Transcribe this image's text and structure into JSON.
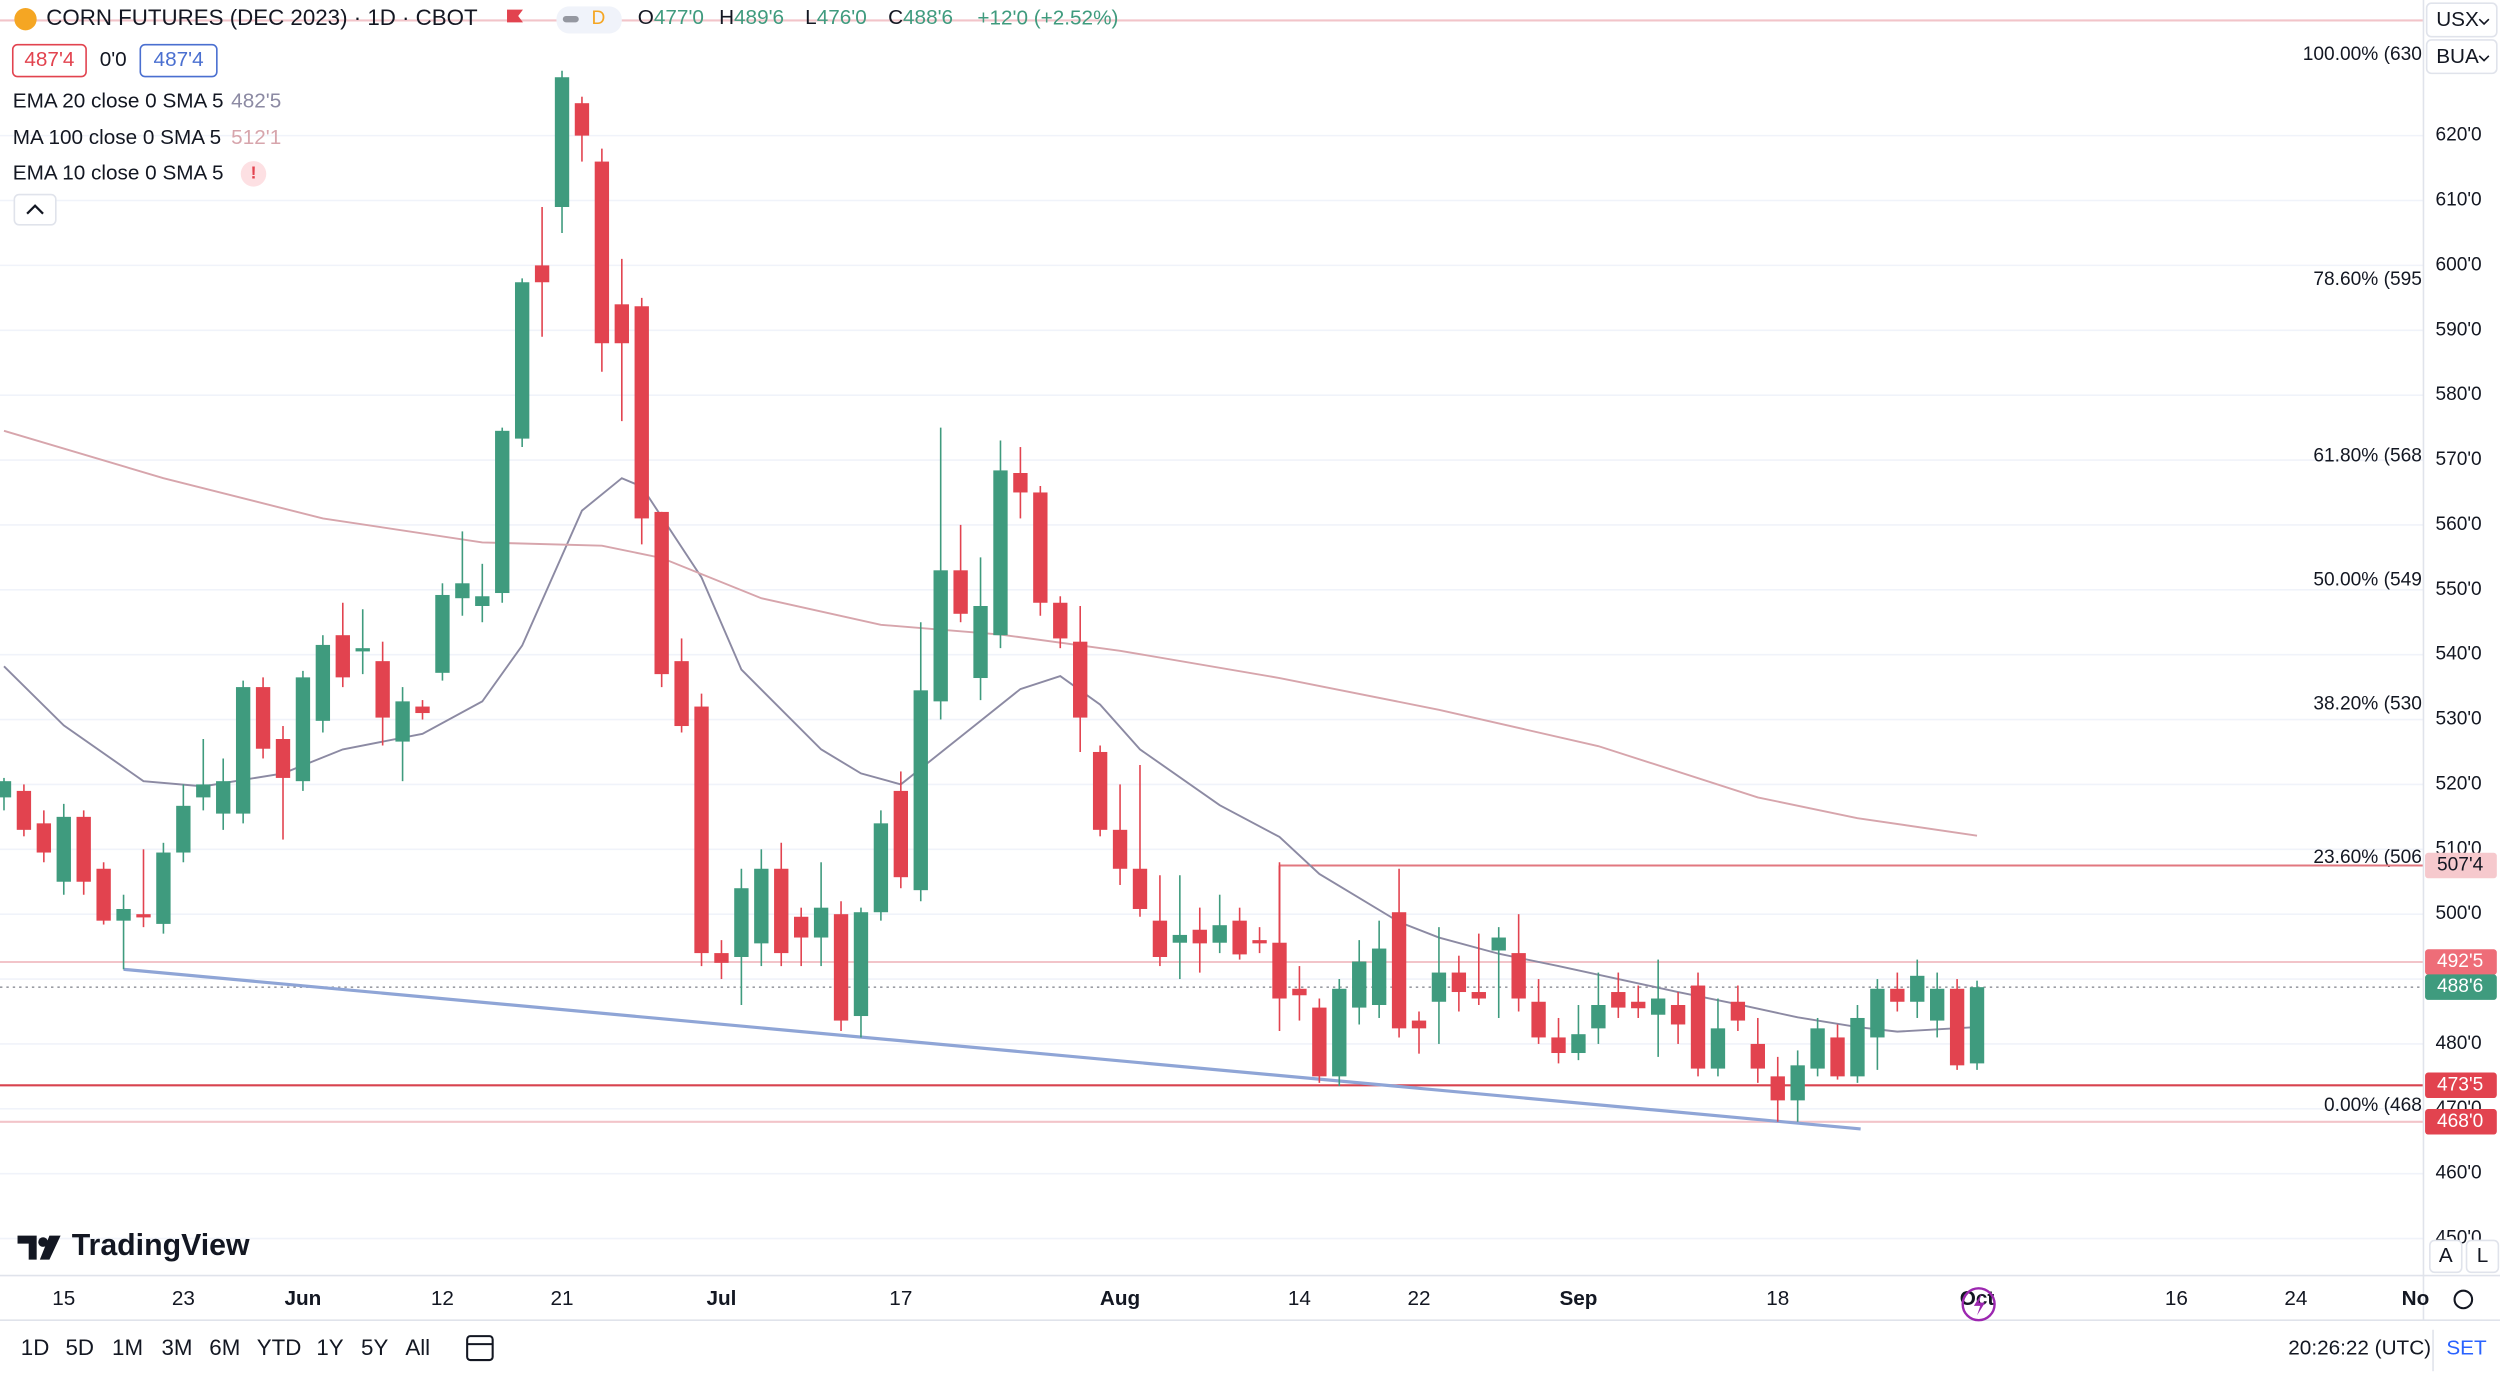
{
  "header": {
    "title": "CORN FUTURES (DEC 2023) · 1D · CBOT",
    "interval_badge": "D",
    "ohlc": [
      {
        "label": "O",
        "value": "477'0"
      },
      {
        "label": "H",
        "value": "489'6"
      },
      {
        "label": "L",
        "value": "476'0"
      },
      {
        "label": "C",
        "value": "488'6"
      }
    ],
    "change": "+12'0 (+2.52%)"
  },
  "quote": {
    "bid": "487'4",
    "spread": "0'0",
    "ask": "487'4"
  },
  "top_right": {
    "currency": "USX",
    "unit": "BUA"
  },
  "logo": "TradingView",
  "toolbar": {
    "ranges": [
      "1D",
      "5D",
      "1M",
      "3M",
      "6M",
      "YTD",
      "1Y",
      "5Y",
      "All"
    ],
    "clock": "20:26:22 (UTC)",
    "settings": "SET",
    "scale_buttons": [
      "A",
      "L"
    ]
  },
  "chart_data": {
    "type": "candlestick",
    "up_color": "#3f9b7e",
    "down_color": "#e2434f",
    "grid": true,
    "categories": [
      null,
      null,
      null,
      "15",
      null,
      null,
      null,
      null,
      null,
      "23",
      null,
      null,
      null,
      null,
      null,
      "Jun",
      null,
      null,
      null,
      null,
      null,
      null,
      "12",
      null,
      null,
      null,
      null,
      null,
      "21",
      null,
      null,
      null,
      null,
      null,
      null,
      null,
      "Jul",
      null,
      null,
      null,
      null,
      null,
      null,
      null,
      null,
      "17",
      null,
      null,
      null,
      null,
      null,
      null,
      null,
      null,
      null,
      null,
      "Aug",
      null,
      null,
      null,
      null,
      null,
      null,
      null,
      null,
      "14",
      null,
      null,
      null,
      null,
      null,
      "22",
      null,
      null,
      null,
      null,
      null,
      null,
      null,
      "Sep",
      null,
      null,
      null,
      null,
      null,
      null,
      null,
      null,
      null,
      "18",
      null,
      null,
      null,
      null,
      null,
      null,
      null,
      null,
      null,
      "Oct",
      null,
      null,
      null,
      null,
      null,
      null,
      null,
      null,
      null,
      "16",
      null,
      null,
      null,
      null,
      null,
      "24",
      null,
      null,
      null,
      null,
      null,
      "No"
    ],
    "open": [
      518,
      519,
      514,
      505,
      515,
      507,
      499,
      500,
      498.5,
      509.5,
      518,
      515.5,
      515.5,
      535,
      527,
      520.5,
      529.8,
      543,
      540.5,
      539,
      526.6,
      532,
      537.2,
      548.7,
      547.5,
      549.5,
      573.3,
      600,
      609,
      625,
      616,
      594,
      593.7,
      562,
      539,
      532,
      494,
      493.4,
      495.5,
      507,
      499.6,
      496.4,
      500,
      484.3,
      500.3,
      519,
      503.7,
      532.8,
      553,
      536.4,
      543,
      568,
      565,
      548,
      542,
      525,
      513,
      507,
      499,
      495.6,
      497.6,
      495.6,
      499,
      496,
      495.6,
      488.5,
      485.6,
      475,
      485.6,
      486,
      500.3,
      483.6,
      486.5,
      491,
      488,
      494.4,
      494,
      486.5,
      481,
      478.6,
      482.4,
      488,
      486.5,
      484.5,
      486,
      489,
      476.2,
      486.5,
      480,
      475,
      471.3,
      476.2,
      481,
      475,
      481,
      488.5,
      486.5,
      483.6,
      488.5,
      477,
      null,
      null,
      null,
      null,
      null,
      null,
      null,
      null,
      null,
      null,
      null,
      null,
      null,
      null,
      null,
      null,
      null,
      null,
      null,
      null,
      null,
      null
    ],
    "high": [
      521,
      520,
      516,
      517,
      516,
      508,
      503,
      510,
      511,
      520,
      527,
      524,
      536,
      536.5,
      529,
      537.5,
      543,
      548,
      547,
      542,
      535,
      533,
      551,
      559,
      554,
      575,
      598,
      609,
      630,
      626,
      618,
      601,
      595,
      562,
      542.5,
      534,
      496,
      507,
      510,
      511,
      501,
      508,
      502,
      501,
      516,
      522,
      545,
      575,
      560,
      555,
      573,
      572,
      566,
      549,
      547.5,
      526,
      520,
      523,
      506,
      506,
      501,
      503,
      501,
      498,
      508,
      492,
      487,
      490,
      496,
      499,
      507,
      485,
      498,
      493.6,
      497,
      498,
      500,
      490,
      484,
      486,
      491,
      491,
      489,
      493,
      488,
      491,
      487,
      489,
      484,
      478,
      479,
      484,
      483,
      486,
      490,
      491,
      493,
      491,
      490,
      489.75,
      null,
      null,
      null,
      null,
      null,
      null,
      null,
      null,
      null,
      null,
      null,
      null,
      null,
      null,
      null,
      null,
      null,
      null,
      null,
      null,
      null,
      null
    ],
    "low": [
      516,
      512,
      508,
      503,
      503,
      498.4,
      491.5,
      498,
      497,
      508,
      516,
      513,
      514,
      524,
      511.5,
      519,
      528,
      535,
      537,
      526,
      520.5,
      530,
      536,
      546,
      545,
      548,
      572,
      589,
      605,
      616,
      583.6,
      576,
      557,
      535,
      528,
      492,
      490,
      486,
      492,
      492,
      492,
      492,
      482,
      481,
      499,
      504,
      502,
      530,
      545,
      533,
      541,
      561,
      546,
      541,
      525,
      512,
      504.5,
      499.6,
      492,
      490,
      491,
      494,
      493,
      494,
      482,
      483.6,
      474,
      473.5,
      483,
      484,
      481,
      478.5,
      480,
      485,
      486,
      484,
      485,
      480,
      477,
      477.5,
      480,
      484,
      484,
      478,
      480,
      475,
      475,
      482,
      474,
      468,
      468,
      475,
      474.5,
      474,
      476,
      485,
      484,
      481,
      476,
      476,
      null,
      null,
      null,
      null,
      null,
      null,
      null,
      null,
      null,
      null,
      null,
      null,
      null,
      null,
      null,
      null,
      null,
      null,
      null,
      null,
      null,
      null
    ],
    "close": [
      520.5,
      513,
      509.5,
      515,
      505,
      499,
      500.8,
      499.5,
      509.5,
      516.7,
      520,
      520.5,
      535,
      525.5,
      521,
      536.5,
      541.5,
      536.5,
      541,
      530.3,
      532.8,
      531,
      549.2,
      551,
      549,
      574.5,
      597.4,
      597.4,
      629,
      620,
      588,
      588,
      561,
      537,
      529,
      494,
      492.5,
      504,
      507,
      494,
      496.4,
      501,
      483.6,
      500.3,
      514,
      505.7,
      534.5,
      553,
      546.3,
      547.5,
      568.4,
      565,
      548,
      542.5,
      530.3,
      513,
      507,
      500.8,
      493.4,
      496.8,
      495.5,
      498.3,
      493.8,
      495.5,
      487,
      487.5,
      475,
      488.5,
      492.7,
      494.7,
      482.4,
      482.4,
      491,
      488,
      487,
      496.4,
      487,
      481,
      478.6,
      481.5,
      486,
      485.6,
      485.5,
      487,
      483,
      476.2,
      482.4,
      483.6,
      476.2,
      471.3,
      476.7,
      482.4,
      475,
      484,
      488.5,
      486.5,
      490.5,
      488.5,
      476.7,
      488.75,
      null,
      null,
      null,
      null,
      null,
      null,
      null,
      null,
      null,
      null,
      null,
      null,
      null,
      null,
      null,
      null,
      null,
      null,
      null,
      null,
      null,
      null
    ],
    "xlim": [
      -0.2,
      121.4
    ],
    "ylim": [
      444.3,
      640.9
    ],
    "yticks": [
      {
        "value": 450,
        "label": "450'0"
      },
      {
        "value": 460,
        "label": "460'0"
      },
      {
        "value": 470,
        "label": "470'0"
      },
      {
        "value": 480,
        "label": "480'0"
      },
      {
        "value": 490,
        "label": "490'0"
      },
      {
        "value": 500,
        "label": "500'0"
      },
      {
        "value": 510,
        "label": "510'0"
      },
      {
        "value": 520,
        "label": "520'0"
      },
      {
        "value": 530,
        "label": "530'0"
      },
      {
        "value": 540,
        "label": "540'0"
      },
      {
        "value": 550,
        "label": "550'0"
      },
      {
        "value": 560,
        "label": "560'0"
      },
      {
        "value": 570,
        "label": "570'0"
      },
      {
        "value": 580,
        "label": "580'0"
      },
      {
        "value": 590,
        "label": "590'0"
      },
      {
        "value": 600,
        "label": "600'0"
      },
      {
        "value": 610,
        "label": "610'0"
      },
      {
        "value": 620,
        "label": "620'0"
      }
    ],
    "series": [
      {
        "name": "EMA 20 close 0 SMA 5",
        "value_label": "482'5",
        "color": "#8c8aa3",
        "x": [
          0,
          3,
          7,
          10,
          14,
          17,
          21,
          24,
          26,
          29,
          31,
          32,
          35,
          37,
          41,
          43,
          45,
          47,
          49,
          51,
          53,
          55,
          57,
          61,
          64,
          66,
          70,
          72,
          75,
          78,
          81,
          84,
          87,
          90,
          93,
          95,
          99
        ],
        "values": [
          538.2,
          529.1,
          520.5,
          519.7,
          521.7,
          525.4,
          527.8,
          532.8,
          541.4,
          562.2,
          567.2,
          565.9,
          551.9,
          537.7,
          525.4,
          521.7,
          520,
          524.9,
          529.8,
          534.7,
          536.7,
          532.3,
          525.4,
          516.8,
          511.9,
          506.2,
          498.8,
          496.4,
          493.9,
          492,
          490,
          488,
          486.1,
          484.1,
          482.6,
          481.9,
          482.6
        ]
      },
      {
        "name": "MA 100 close 0 SMA 5",
        "value_label": "512'1",
        "color": "#d7a5ac",
        "x": [
          0,
          8,
          16,
          24,
          30,
          33,
          38,
          44,
          50,
          56,
          64,
          72,
          80,
          88,
          93,
          99
        ],
        "values": [
          574.5,
          567.2,
          561,
          557.3,
          556.8,
          554.9,
          548.7,
          544.6,
          543.1,
          540.6,
          536.4,
          531.5,
          525.9,
          518,
          514.8,
          512.1
        ]
      }
    ],
    "inactive_indicator": {
      "name": "EMA 10 close 0 SMA 5",
      "status": "!"
    },
    "trendline": {
      "color": "#8fa5d6",
      "x": [
        6,
        93.16
      ],
      "values": [
        491.5,
        466.9
      ]
    },
    "hlines": [
      {
        "value": 637.75,
        "color": "#f2c4c9"
      },
      {
        "value": 492.625,
        "color": "#f2c4c9",
        "label": "492'5",
        "label_bg": "#ee6d78",
        "label_fg": "#ffffff"
      },
      {
        "value": 488.75,
        "color": "#9a9ca3",
        "style": "dotted",
        "label": "488'6",
        "label_bg": "#3f9b7e",
        "label_fg": "#ffffff"
      },
      {
        "value": 473.625,
        "color": "#d8434f",
        "label": "473'5",
        "label_bg": "#e2434f",
        "label_fg": "#ffffff"
      },
      {
        "value": 468,
        "color": "#f2c4c9",
        "label": "468'0",
        "label_bg": "#e2434f",
        "label_fg": "#ffffff"
      },
      {
        "value": 507.5,
        "color": "#e2777f",
        "start": 64,
        "label": "507'4",
        "label_bg": "#f6c9cd",
        "label_fg": "#131722"
      }
    ],
    "fib_levels": [
      {
        "label": "100.00% (630",
        "value": 630
      },
      {
        "label": "78.60% (595",
        "value": 595.3
      },
      {
        "label": "61.80% (568",
        "value": 568.1
      },
      {
        "label": "50.00% (549",
        "value": 549
      },
      {
        "label": "38.20% (530",
        "value": 529.9
      },
      {
        "label": "23.60% (506",
        "value": 506.2
      },
      {
        "label": "0.00% (468",
        "value": 468
      }
    ]
  }
}
